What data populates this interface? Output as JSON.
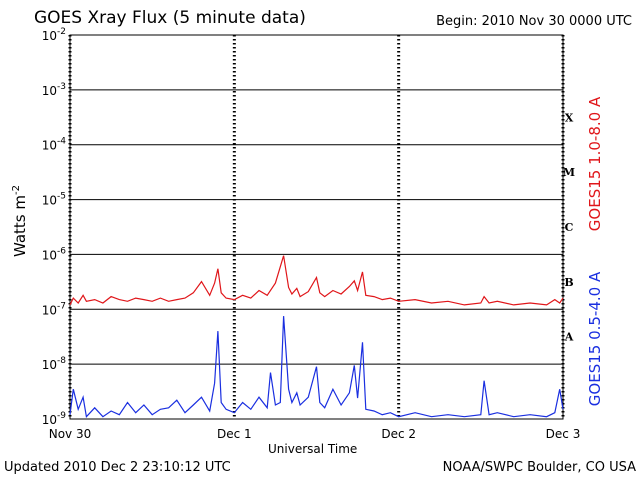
{
  "header": {
    "title": "GOES Xray Flux (5 minute data)",
    "begin": "Begin:  2010 Nov 30 0000 UTC"
  },
  "footer": {
    "updated": "Updated 2010 Dec  2 23:10:12 UTC",
    "credit": "NOAA/SWPC Boulder, CO USA"
  },
  "chart_data": {
    "type": "line",
    "title": "GOES Xray Flux (5 minute data)",
    "xlabel": "Universal Time",
    "ylabel": "Watts m",
    "ylabel_exponent": "-2",
    "yscale": "log",
    "ylim": [
      1e-09,
      0.01
    ],
    "xlim": [
      0,
      3
    ],
    "x_ticks": [
      {
        "value": 0,
        "label": "Nov 30"
      },
      {
        "value": 1,
        "label": "Dec 1"
      },
      {
        "value": 2,
        "label": "Dec 2"
      },
      {
        "value": 3,
        "label": "Dec 3"
      }
    ],
    "y_ticks": [
      {
        "exp": -9,
        "label": "10",
        "sup": "-9"
      },
      {
        "exp": -8,
        "label": "10",
        "sup": "-8"
      },
      {
        "exp": -7,
        "label": "10",
        "sup": "-7"
      },
      {
        "exp": -6,
        "label": "10",
        "sup": "-6"
      },
      {
        "exp": -5,
        "label": "10",
        "sup": "-5"
      },
      {
        "exp": -4,
        "label": "10",
        "sup": "-4"
      },
      {
        "exp": -3,
        "label": "10",
        "sup": "-3"
      },
      {
        "exp": -2,
        "label": "10",
        "sup": "-2"
      }
    ],
    "flare_classes": [
      {
        "label": "A",
        "exp": -8
      },
      {
        "label": "B",
        "exp": -7
      },
      {
        "label": "C",
        "exp": -6
      },
      {
        "label": "M",
        "exp": -5
      },
      {
        "label": "X",
        "exp": -4
      }
    ],
    "grid": true,
    "series": [
      {
        "name": "GOES15 1.0-8.0 A",
        "color": "#e0161a",
        "x": [
          0.0,
          0.02,
          0.05,
          0.08,
          0.1,
          0.15,
          0.2,
          0.25,
          0.3,
          0.35,
          0.4,
          0.45,
          0.5,
          0.55,
          0.6,
          0.65,
          0.7,
          0.75,
          0.8,
          0.85,
          0.88,
          0.9,
          0.92,
          0.95,
          1.0,
          1.05,
          1.1,
          1.15,
          1.2,
          1.25,
          1.3,
          1.33,
          1.35,
          1.38,
          1.4,
          1.45,
          1.5,
          1.52,
          1.55,
          1.6,
          1.65,
          1.7,
          1.73,
          1.75,
          1.78,
          1.8,
          1.85,
          1.9,
          1.95,
          2.0,
          2.1,
          2.2,
          2.3,
          2.4,
          2.5,
          2.52,
          2.55,
          2.6,
          2.7,
          2.8,
          2.9,
          2.95,
          2.98,
          3.0
        ],
        "y": [
          1.2e-07,
          1.6e-07,
          1.3e-07,
          1.8e-07,
          1.4e-07,
          1.5e-07,
          1.3e-07,
          1.7e-07,
          1.5e-07,
          1.4e-07,
          1.6e-07,
          1.5e-07,
          1.4e-07,
          1.6e-07,
          1.4e-07,
          1.5e-07,
          1.6e-07,
          2e-07,
          3.2e-07,
          1.8e-07,
          3e-07,
          5.5e-07,
          2e-07,
          1.6e-07,
          1.5e-07,
          1.8e-07,
          1.6e-07,
          2.2e-07,
          1.8e-07,
          3e-07,
          9.5e-07,
          2.5e-07,
          1.9e-07,
          2.4e-07,
          1.7e-07,
          2.1e-07,
          3.8e-07,
          2e-07,
          1.7e-07,
          2.2e-07,
          1.9e-07,
          2.6e-07,
          3.3e-07,
          2.2e-07,
          4.8e-07,
          1.8e-07,
          1.7e-07,
          1.5e-07,
          1.6e-07,
          1.4e-07,
          1.5e-07,
          1.3e-07,
          1.4e-07,
          1.2e-07,
          1.3e-07,
          1.7e-07,
          1.3e-07,
          1.4e-07,
          1.2e-07,
          1.3e-07,
          1.2e-07,
          1.5e-07,
          1.3e-07,
          1.6e-07
        ]
      },
      {
        "name": "GOES15 0.5-4.0 A",
        "color": "#1a2fe0",
        "x": [
          0.0,
          0.02,
          0.05,
          0.08,
          0.1,
          0.15,
          0.2,
          0.25,
          0.3,
          0.35,
          0.4,
          0.45,
          0.5,
          0.55,
          0.6,
          0.65,
          0.7,
          0.75,
          0.8,
          0.85,
          0.88,
          0.9,
          0.92,
          0.95,
          1.0,
          1.05,
          1.1,
          1.15,
          1.2,
          1.22,
          1.25,
          1.28,
          1.3,
          1.33,
          1.35,
          1.38,
          1.4,
          1.45,
          1.5,
          1.52,
          1.55,
          1.6,
          1.65,
          1.7,
          1.73,
          1.75,
          1.78,
          1.8,
          1.85,
          1.9,
          1.95,
          2.0,
          2.1,
          2.2,
          2.3,
          2.4,
          2.5,
          2.52,
          2.55,
          2.6,
          2.7,
          2.8,
          2.9,
          2.95,
          2.98,
          3.0
        ],
        "y": [
          1.2e-09,
          3.5e-09,
          1.5e-09,
          2.5e-09,
          1.1e-09,
          1.6e-09,
          1.1e-09,
          1.4e-09,
          1.2e-09,
          2e-09,
          1.3e-09,
          1.8e-09,
          1.2e-09,
          1.5e-09,
          1.6e-09,
          2.2e-09,
          1.3e-09,
          1.8e-09,
          2.5e-09,
          1.4e-09,
          4.5e-09,
          4e-08,
          2e-09,
          1.5e-09,
          1.3e-09,
          2e-09,
          1.5e-09,
          2.5e-09,
          1.6e-09,
          7e-09,
          1.8e-09,
          2e-09,
          7.5e-08,
          3.5e-09,
          2e-09,
          3e-09,
          1.8e-09,
          2.5e-09,
          9e-09,
          2e-09,
          1.6e-09,
          3.5e-09,
          1.8e-09,
          3e-09,
          9.5e-09,
          2.4e-09,
          2.5e-08,
          1.5e-09,
          1.4e-09,
          1.2e-09,
          1.3e-09,
          1.1e-09,
          1.3e-09,
          1.1e-09,
          1.2e-09,
          1.1e-09,
          1.2e-09,
          5e-09,
          1.2e-09,
          1.3e-09,
          1.1e-09,
          1.2e-09,
          1.1e-09,
          1.3e-09,
          3.5e-09,
          1.5e-09
        ]
      }
    ]
  }
}
